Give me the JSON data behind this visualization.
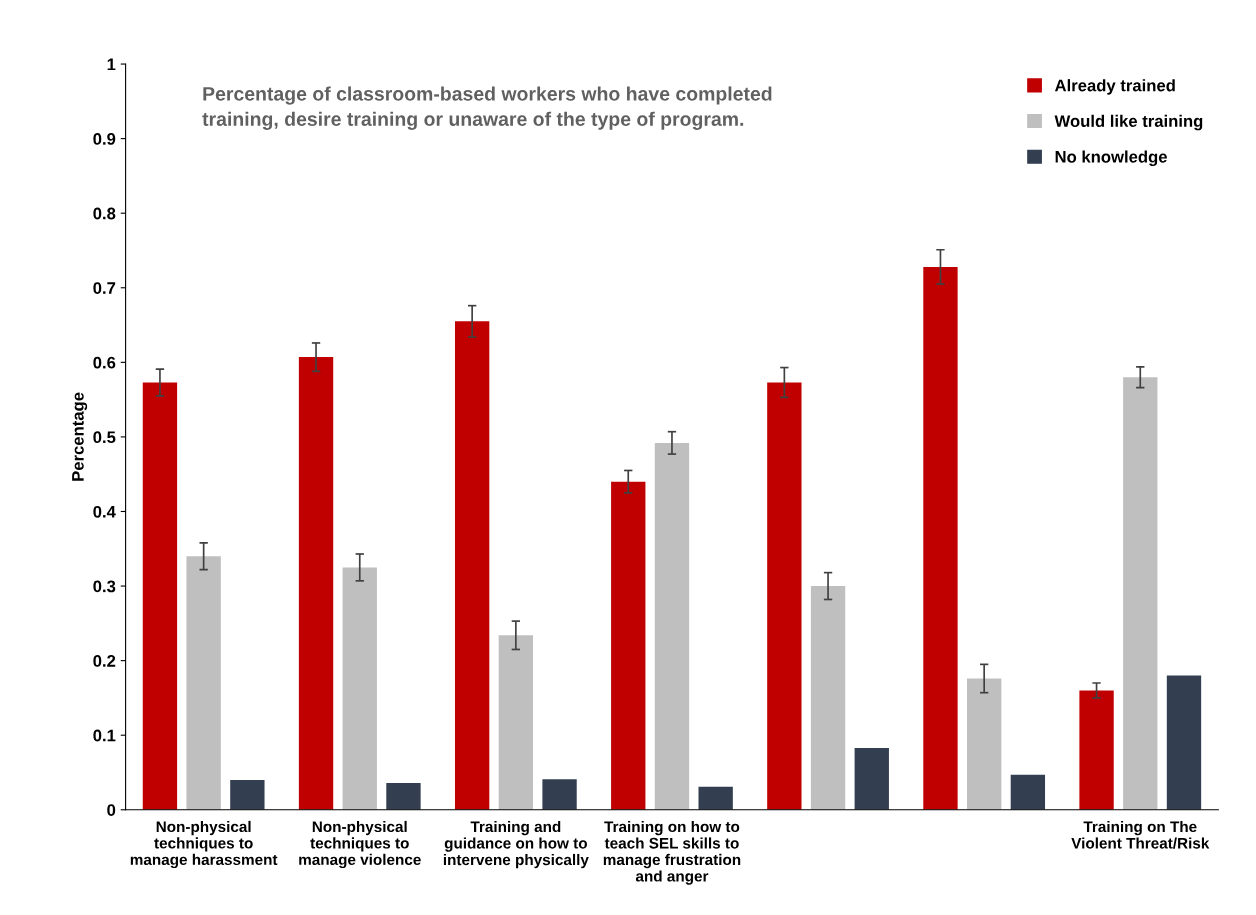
{
  "chart_data": {
    "type": "bar",
    "title": "Percentage of classroom-based workers who have completed\ntraining, desire training or unaware of the type of program.",
    "ylabel": "Percentage",
    "categories": [
      "Non-physical\ntechniques to\nmanage harassment",
      "Non-physical\ntechniques to\nmanage violence",
      "Training and\nguidance on how to\nintervene physically",
      "Training on how to\nteach SEL skills to\nmanage frustration\nand anger",
      null,
      null,
      "Training on The\nViolent Threat/Risk"
    ],
    "series": [
      {
        "name": "Already trained",
        "color": "#c00000",
        "values": [
          0.573,
          0.607,
          0.655,
          0.44,
          0.573,
          0.728,
          0.16
        ],
        "errors": [
          0.018,
          0.019,
          0.021,
          0.015,
          0.02,
          0.023,
          0.01
        ]
      },
      {
        "name": "Would like training",
        "color": "#bfbfbf",
        "values": [
          0.34,
          0.325,
          0.234,
          0.492,
          0.3,
          0.176,
          0.58
        ],
        "errors": [
          0.018,
          0.018,
          0.019,
          0.015,
          0.018,
          0.019,
          0.014
        ]
      },
      {
        "name": "No knowledge",
        "color": "#333f50",
        "values": [
          0.04,
          0.036,
          0.041,
          0.031,
          0.083,
          0.047,
          0.18
        ]
      }
    ],
    "ylim": [
      0,
      1
    ],
    "yticks": [
      0,
      0.1,
      0.2,
      0.3,
      0.4,
      0.5,
      0.6,
      0.7,
      0.8,
      0.9,
      1
    ],
    "legend": "top right",
    "grid": false
  }
}
